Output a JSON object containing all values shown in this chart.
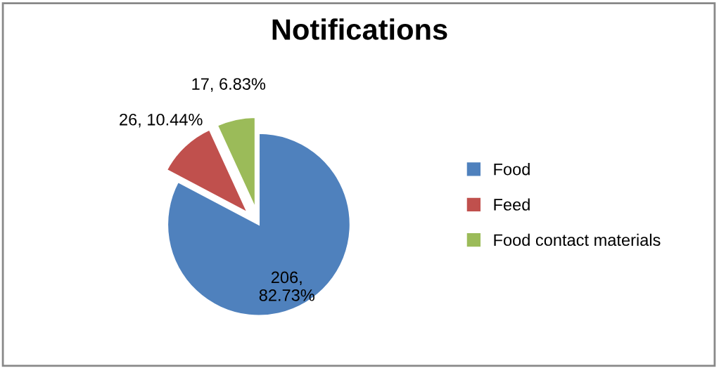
{
  "chart_data": {
    "type": "pie",
    "title": "Notifications",
    "categories": [
      "Food",
      "Feed",
      "Food contact materials"
    ],
    "values": [
      206,
      26,
      17
    ],
    "value_labels": [
      "206,\n82.73%",
      "26, 10.44%",
      "17, 6.83%"
    ],
    "colors": [
      "#4f81bd",
      "#c0504d",
      "#9bbb59"
    ],
    "legend": "right"
  }
}
